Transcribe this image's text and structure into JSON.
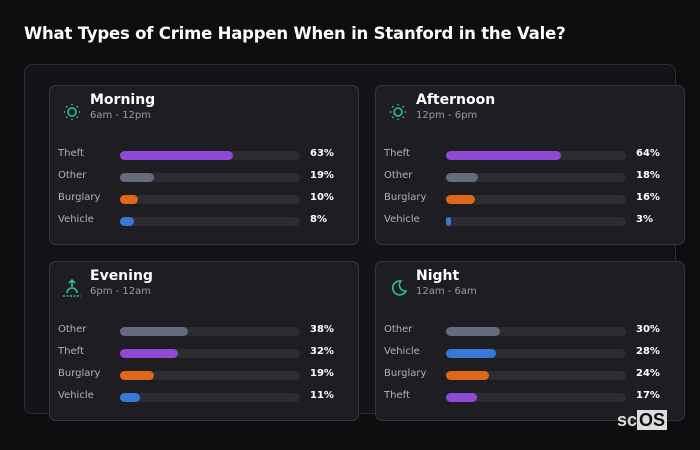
{
  "chart_data": {
    "type": "bar",
    "title": "What Types of Crime Happen When in Stanford in the Vale?",
    "xlim": [
      0,
      100
    ],
    "colors": {
      "Theft": "#9048d6",
      "Other": "#636b7d",
      "Burglary": "#e0661c",
      "Vehicle": "#3a78d8"
    },
    "panels": [
      {
        "name": "Morning",
        "range": "6am - 12pm",
        "icon": "sun-icon",
        "items": [
          {
            "label": "Theft",
            "value": 63
          },
          {
            "label": "Other",
            "value": 19
          },
          {
            "label": "Burglary",
            "value": 10
          },
          {
            "label": "Vehicle",
            "value": 8
          }
        ]
      },
      {
        "name": "Afternoon",
        "range": "12pm - 6pm",
        "icon": "sun-icon",
        "items": [
          {
            "label": "Theft",
            "value": 64
          },
          {
            "label": "Other",
            "value": 18
          },
          {
            "label": "Burglary",
            "value": 16
          },
          {
            "label": "Vehicle",
            "value": 3
          }
        ]
      },
      {
        "name": "Evening",
        "range": "6pm - 12am",
        "icon": "sunset-icon",
        "items": [
          {
            "label": "Other",
            "value": 38
          },
          {
            "label": "Theft",
            "value": 32
          },
          {
            "label": "Burglary",
            "value": 19
          },
          {
            "label": "Vehicle",
            "value": 11
          }
        ]
      },
      {
        "name": "Night",
        "range": "12am - 6am",
        "icon": "moon-icon",
        "items": [
          {
            "label": "Other",
            "value": 30
          },
          {
            "label": "Vehicle",
            "value": 28
          },
          {
            "label": "Burglary",
            "value": 24
          },
          {
            "label": "Theft",
            "value": 17
          }
        ]
      }
    ]
  },
  "logo": {
    "text1": "sc",
    "text2": "OS"
  },
  "accent": "#2bc29a"
}
